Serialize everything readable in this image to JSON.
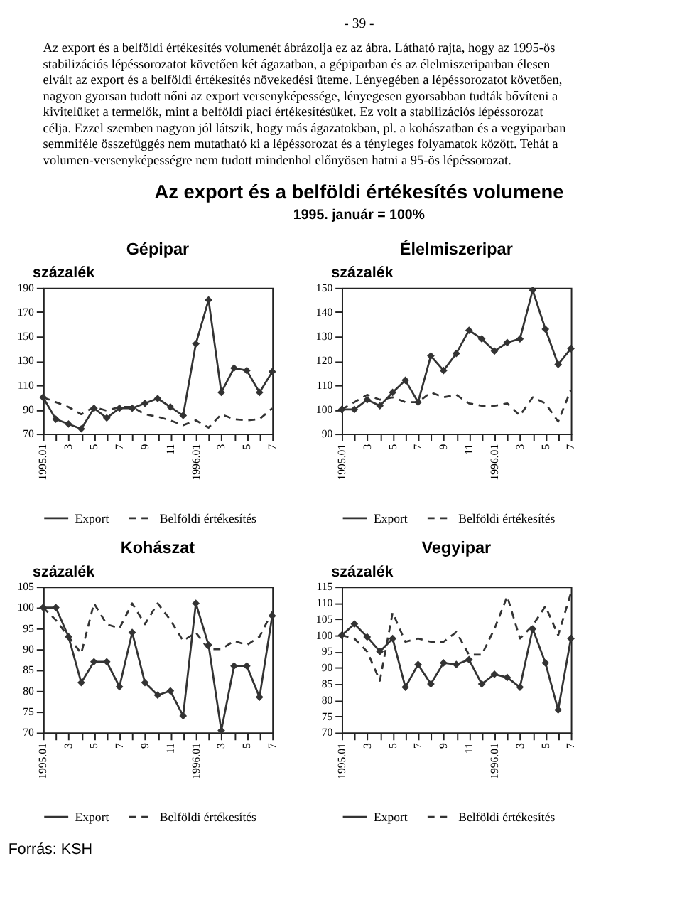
{
  "chart_data": [
    {
      "type": "other",
      "title": "Az export és a belföldi értékesítés volumene",
      "subtitle": "1995. január = 100%",
      "annotations": [
        "- 39 -",
        "Az export és a belföldi értékesítés volumenét ábrázolja ez az ábra. Látható rajta, hogy az 1995-ös stabilizációs lépéssorozatot követően két ágazatban, a gépiparban és az élelmiszeriparban élesen elvált az export és a belföldi értékesítés növekedési üteme. Lényegében a lépéssorozatot követően, nagyon gyorsan tudott nőni az export versenyképessége, lényegesen gyorsabban tudták bővíteni a kivitelüket a termelők, mint a belföldi piaci értékesítésüket. Ez volt a stabilizációs lépéssorozat célja. Ezzel szemben nagyon jól látszik, hogy más ágazatokban, pl. a kohászatban és a vegyiparban semmiféle összefüggés nem mutatható ki a lépéssorozat és a tényleges folyamatok között. Tehát a volumen-versenyképességre nem tudott mindenhol előnyösen hatni a 95-ös lépéssorozat."
      ]
    },
    {
      "type": "line",
      "title": "Gépipar",
      "ylabel": "százalék",
      "categories": [
        "1995.01",
        null,
        "3",
        null,
        "5",
        null,
        "7",
        null,
        "9",
        null,
        "11",
        null,
        "1996.01",
        null,
        "3",
        null,
        "5",
        null,
        "7"
      ],
      "ylim": [
        70,
        190
      ],
      "yticks": [
        70,
        90,
        110,
        130,
        150,
        170,
        190
      ],
      "legend": "bottom",
      "series": [
        {
          "name": "Export",
          "color": "#333333",
          "marker": "diamond",
          "line_style": "solid",
          "values": [
            100,
            82,
            78,
            74,
            91,
            83,
            91,
            91,
            95,
            99,
            92,
            85,
            144,
            180,
            104,
            124,
            122,
            104,
            121
          ]
        },
        {
          "name": "Belföldi értékesítés",
          "color": "#333333",
          "marker": "none",
          "line_style": "dashed",
          "values": [
            100,
            96,
            92,
            86,
            92,
            89,
            92,
            92,
            86,
            84,
            81,
            77,
            81,
            75,
            86,
            82,
            81,
            82,
            91
          ]
        }
      ]
    },
    {
      "type": "line",
      "title": "Élelmiszeripar",
      "ylabel": "százalék",
      "categories": [
        "1995.01",
        null,
        "3",
        null,
        "5",
        null,
        "7",
        null,
        "9",
        null,
        "11",
        null,
        "1996.01",
        null,
        "3",
        null,
        "5",
        null,
        "7"
      ],
      "ylim": [
        90,
        150
      ],
      "yticks": [
        90,
        100,
        110,
        120,
        130,
        140,
        150
      ],
      "legend": "bottom",
      "series": [
        {
          "name": "Export",
          "color": "#333333",
          "marker": "diamond",
          "line_style": "solid",
          "values": [
            100,
            100,
            104,
            101.5,
            107,
            112,
            103,
            122,
            116,
            123,
            132.5,
            129,
            124,
            127.5,
            129,
            149,
            133,
            118.5,
            125
          ]
        },
        {
          "name": "Belföldi értékesítés",
          "color": "#333333",
          "marker": "none",
          "line_style": "dashed",
          "values": [
            100,
            103,
            106,
            104,
            105,
            103,
            103,
            107,
            105,
            106,
            102.5,
            101.5,
            101.5,
            102.5,
            97.5,
            105,
            102.5,
            95,
            108
          ]
        }
      ]
    },
    {
      "type": "line",
      "title": "Kohászat",
      "ylabel": "százalék",
      "categories": [
        "1995.01",
        null,
        "3",
        null,
        "5",
        null,
        "7",
        null,
        "9",
        null,
        "11",
        null,
        "1996.01",
        null,
        "3",
        null,
        "5",
        null,
        "7"
      ],
      "ylim": [
        70,
        105
      ],
      "yticks": [
        70,
        75,
        80,
        85,
        90,
        95,
        100,
        105
      ],
      "legend": "bottom",
      "annotations": [
        "Forrás: KSH"
      ],
      "series": [
        {
          "name": "Export",
          "color": "#333333",
          "marker": "diamond",
          "line_style": "solid",
          "values": [
            100,
            100,
            93,
            82,
            87,
            87,
            81,
            94,
            82,
            79,
            80,
            74,
            101,
            91,
            70.5,
            86,
            86,
            78.5,
            98
          ]
        },
        {
          "name": "Belföldi értékesítés",
          "color": "#333333",
          "marker": "none",
          "line_style": "dashed",
          "values": [
            100,
            97,
            93,
            89,
            101,
            96,
            95,
            101,
            96,
            101,
            97,
            92,
            94,
            90,
            90,
            92,
            91,
            93,
            99
          ]
        }
      ]
    },
    {
      "type": "line",
      "title": "Vegyipar",
      "ylabel": "százalék",
      "categories": [
        "1995.01",
        null,
        "3",
        null,
        "5",
        null,
        "7",
        null,
        "9",
        null,
        "11",
        null,
        "1996.01",
        null,
        "3",
        null,
        "5",
        null,
        "7"
      ],
      "ylim": [
        70,
        115
      ],
      "yticks": [
        70,
        75,
        80,
        85,
        90,
        95,
        100,
        105,
        110,
        115
      ],
      "legend": "bottom",
      "series": [
        {
          "name": "Export",
          "color": "#333333",
          "marker": "diamond",
          "line_style": "solid",
          "values": [
            100,
            103.5,
            99.5,
            95,
            99,
            84,
            91,
            85,
            91.5,
            91,
            92.5,
            85,
            88,
            87,
            84,
            102,
            91.5,
            77,
            99
          ]
        },
        {
          "name": "Belföldi értékesítés",
          "color": "#333333",
          "marker": "none",
          "line_style": "dashed",
          "values": [
            100,
            99,
            95,
            86,
            107,
            98,
            99,
            98,
            98,
            101,
            94,
            94,
            102,
            112,
            99,
            103,
            109,
            100,
            113
          ]
        }
      ]
    }
  ]
}
